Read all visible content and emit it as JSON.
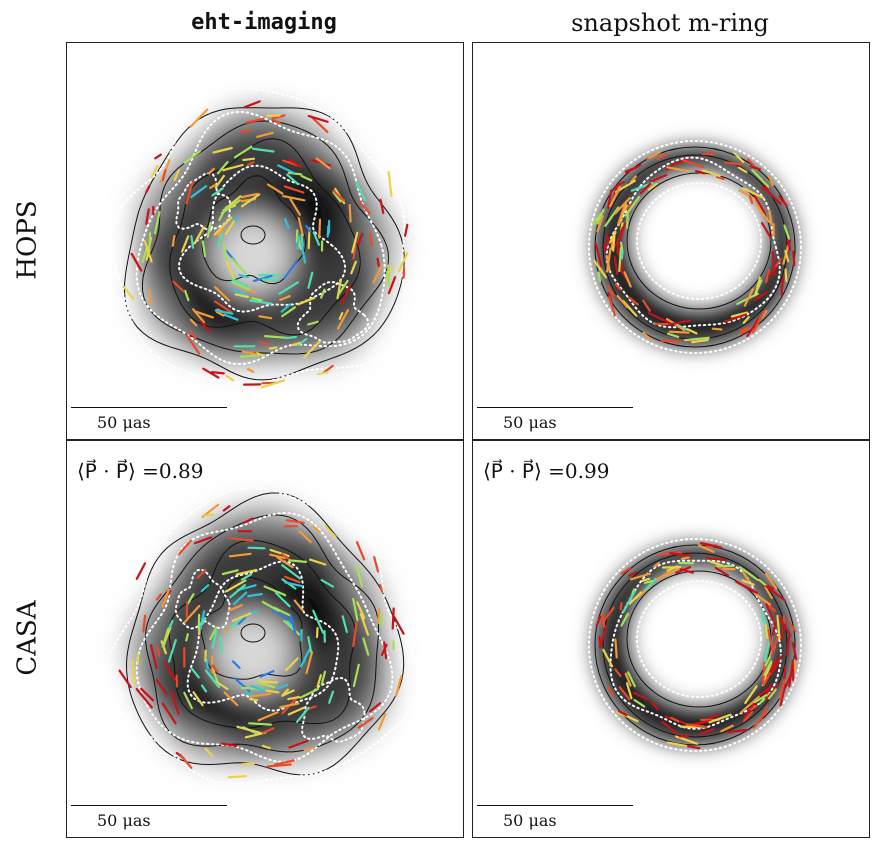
{
  "figure": {
    "columns": [
      {
        "title": "eht-imaging",
        "mono": true
      },
      {
        "title": "snapshot m-ring",
        "mono": false
      }
    ],
    "rows": [
      {
        "label": "HOPS"
      },
      {
        "label": "CASA"
      }
    ],
    "panels": [
      {
        "id": "hops-eht",
        "kind": "blob",
        "scale_label": "50 μas",
        "metric_label": ""
      },
      {
        "id": "hops-mring",
        "kind": "ring",
        "scale_label": "50 μas",
        "metric_label": ""
      },
      {
        "id": "casa-eht",
        "kind": "blob",
        "scale_label": "50 μas",
        "metric_label": "⟨P⃗ · P⃗⟩ =0.89"
      },
      {
        "id": "casa-mring",
        "kind": "ring",
        "scale_label": "50 μas",
        "metric_label": "⟨P⃗ · P⃗⟩ =0.99"
      }
    ],
    "colors": {
      "ticks": [
        "#1d2fbf",
        "#2a7de0",
        "#2ec4d8",
        "#4fe0b0",
        "#a6e05a",
        "#e8d34a",
        "#f29a3a",
        "#e84a2a",
        "#c8121a"
      ],
      "contour": "#111111",
      "dotted": "#ffffff"
    }
  }
}
